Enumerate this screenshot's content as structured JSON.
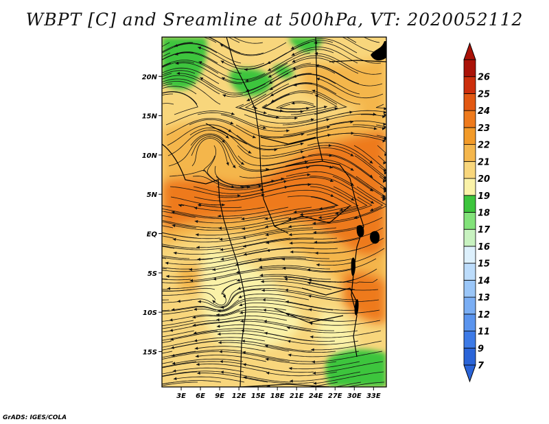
{
  "title": "WBPT [C] and Sreamline at 500hPa, VT: 2020052112",
  "credit": "GrADS: IGES/COLA",
  "lat_ticks": [
    {
      "label": "20N",
      "value": 20
    },
    {
      "label": "15N",
      "value": 15
    },
    {
      "label": "10N",
      "value": 10
    },
    {
      "label": "5N",
      "value": 5
    },
    {
      "label": "EQ",
      "value": 0
    },
    {
      "label": "5S",
      "value": -5
    },
    {
      "label": "10S",
      "value": -10
    },
    {
      "label": "15S",
      "value": -15
    }
  ],
  "lon_ticks": [
    {
      "label": "3E",
      "value": 3
    },
    {
      "label": "6E",
      "value": 6
    },
    {
      "label": "9E",
      "value": 9
    },
    {
      "label": "12E",
      "value": 12
    },
    {
      "label": "15E",
      "value": 15
    },
    {
      "label": "18E",
      "value": 18
    },
    {
      "label": "21E",
      "value": 21
    },
    {
      "label": "24E",
      "value": 24
    },
    {
      "label": "27E",
      "value": 27
    },
    {
      "label": "30E",
      "value": 30
    },
    {
      "label": "33E",
      "value": 33
    }
  ],
  "colorbar": [
    {
      "label": "7",
      "color": "#2a64d8"
    },
    {
      "label": "9",
      "color": "#3d7ae6"
    },
    {
      "label": "11",
      "color": "#5a94ee"
    },
    {
      "label": "12",
      "color": "#7aaef4"
    },
    {
      "label": "13",
      "color": "#9ac6f8"
    },
    {
      "label": "14",
      "color": "#bcdcfb"
    },
    {
      "label": "15",
      "color": "#ddf0fc"
    },
    {
      "label": "16",
      "color": "#c8f2c0"
    },
    {
      "label": "17",
      "color": "#82e27a"
    },
    {
      "label": "18",
      "color": "#3cc53c"
    },
    {
      "label": "19",
      "color": "#faf2a8"
    },
    {
      "label": "20",
      "color": "#f8d67c"
    },
    {
      "label": "21",
      "color": "#f4b64c"
    },
    {
      "label": "22",
      "color": "#f29a28"
    },
    {
      "label": "23",
      "color": "#ee7a1c"
    },
    {
      "label": "24",
      "color": "#e25812"
    },
    {
      "label": "25",
      "color": "#cc2e0c"
    },
    {
      "label": "26",
      "color": "#aa1208"
    }
  ],
  "colorbar_arrow_bottom": "#2a64d8",
  "colorbar_arrow_top": "#aa1208",
  "colors": {
    "base": "#f8d67c",
    "warm": "#f4b64c",
    "hot": "#ee7a1c",
    "green": "#3cc53c",
    "light_yellow": "#faf2a8"
  }
}
